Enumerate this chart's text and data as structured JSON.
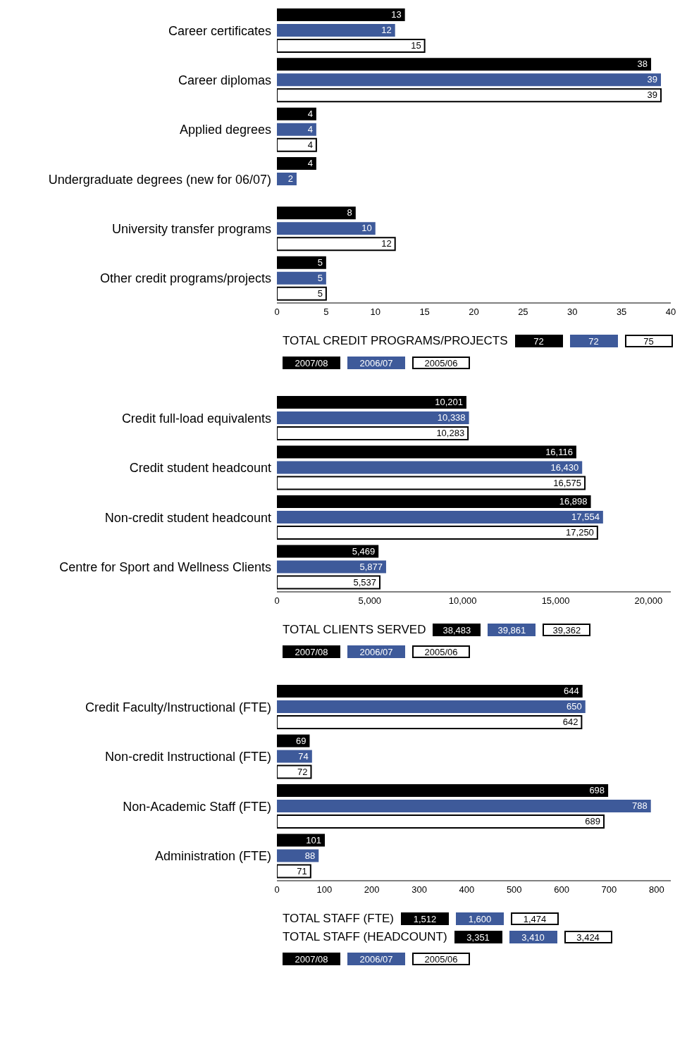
{
  "chart_data": [
    {
      "type": "bar",
      "orientation": "horizontal",
      "categories": [
        "Career certificates",
        "Career diplomas",
        "Applied degrees",
        "Undergraduate degrees (new for 06/07)",
        "University transfer programs",
        "Other credit programs/projects"
      ],
      "series": [
        {
          "name": "2007/08",
          "color": "#000000",
          "values": [
            13,
            38,
            4,
            4,
            8,
            5
          ]
        },
        {
          "name": "2006/07",
          "color": "#3e5a9a",
          "values": [
            12,
            39,
            4,
            2,
            10,
            5
          ]
        },
        {
          "name": "2005/06",
          "color": "#ffffff",
          "values": [
            15,
            39,
            4,
            null,
            12,
            5
          ]
        }
      ],
      "xlim": [
        0,
        40
      ],
      "xticks": [
        0,
        5,
        10,
        15,
        20,
        25,
        30,
        35,
        40
      ],
      "data_labels": true,
      "legend": "bottom",
      "annotations": [
        "TOTAL CREDIT PROGRAMS/PROJECTS",
        "72",
        "72",
        "75"
      ]
    },
    {
      "type": "bar",
      "orientation": "horizontal",
      "categories": [
        "Credit full-load equivalents",
        "Credit student headcount",
        "Non-credit student headcount",
        "Centre for Sport and Wellness Clients"
      ],
      "series": [
        {
          "name": "2007/08",
          "color": "#000000",
          "values": [
            10201,
            16116,
            16898,
            5469
          ],
          "value_labels": [
            "10,201",
            "16,116",
            "16,898",
            "5,469"
          ]
        },
        {
          "name": "2006/07",
          "color": "#3e5a9a",
          "values": [
            10338,
            16430,
            17554,
            5877
          ],
          "value_labels": [
            "10,338",
            "16,430",
            "17,554",
            "5,877"
          ]
        },
        {
          "name": "2005/06",
          "color": "#ffffff",
          "values": [
            10283,
            16575,
            17250,
            5537
          ],
          "value_labels": [
            "10,283",
            "16,575",
            "17,250",
            "5,537"
          ]
        }
      ],
      "xlim": [
        0,
        21200
      ],
      "xticks": [
        0,
        {
          "value": 5000,
          "label": "5,000"
        },
        {
          "value": 10000,
          "label": "10,000"
        },
        {
          "value": 15000,
          "label": "15,000"
        },
        {
          "value": 20000,
          "label": "20,000"
        }
      ],
      "legend": "bottom",
      "annotations": [
        "TOTAL CLIENTS SERVED",
        "38,483",
        "39,861",
        "39,362"
      ]
    },
    {
      "type": "bar",
      "orientation": "horizontal",
      "categories": [
        "Credit Faculty/Instructional (FTE)",
        "Non-credit Instructional (FTE)",
        "Non-Academic Staff (FTE)",
        "Administration (FTE)"
      ],
      "series": [
        {
          "name": "2007/08",
          "color": "#000000",
          "values": [
            644,
            69,
            698,
            101
          ]
        },
        {
          "name": "2006/07",
          "color": "#3e5a9a",
          "values": [
            650,
            74,
            788,
            88
          ]
        },
        {
          "name": "2005/06",
          "color": "#ffffff",
          "values": [
            642,
            72,
            689,
            71
          ]
        }
      ],
      "xlim": [
        0,
        830
      ],
      "xticks": [
        0,
        100,
        200,
        300,
        400,
        500,
        600,
        700,
        800
      ],
      "data_labels": true,
      "legend": "bottom",
      "annotations": [
        "TOTAL STAFF (FTE)",
        "1,512",
        "1,600",
        "1,474",
        "TOTAL STAFF (HEADCOUNT)",
        "3,351",
        "3,410",
        "3,424"
      ]
    }
  ]
}
